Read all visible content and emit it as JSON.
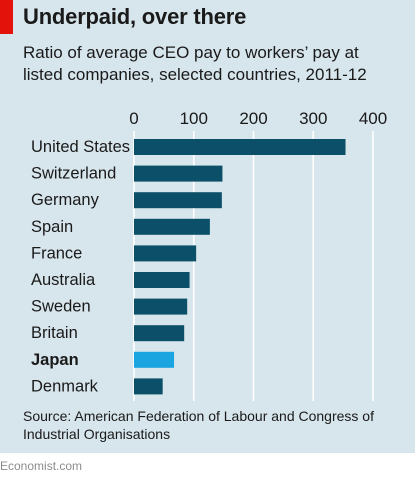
{
  "header": {
    "title": "Underpaid, over there",
    "subtitle": "Ratio of average CEO pay to workers’ pay at listed companies, selected countries, 2011-12"
  },
  "chart_data": {
    "type": "bar",
    "orientation": "horizontal",
    "categories": [
      "United States",
      "Switzerland",
      "Germany",
      "Spain",
      "France",
      "Australia",
      "Sweden",
      "Britain",
      "Japan",
      "Denmark"
    ],
    "values": [
      354,
      148,
      147,
      127,
      104,
      93,
      89,
      84,
      67,
      48
    ],
    "highlight": "Japan",
    "xlim": [
      0,
      400
    ],
    "xticks": [
      0,
      100,
      200,
      300,
      400
    ],
    "tick_position": "top",
    "grid": true,
    "legend": "none"
  },
  "colors": {
    "background": "#d7e5ec",
    "bar": "#0b5068",
    "highlight_bar": "#1ba5e0",
    "gridline": "#ffffff",
    "brand_tab": "#e3120b"
  },
  "footer": {
    "source": "Source: American Federation of Labour and Congress of Industrial Organisations",
    "brand": "Economist.com"
  }
}
